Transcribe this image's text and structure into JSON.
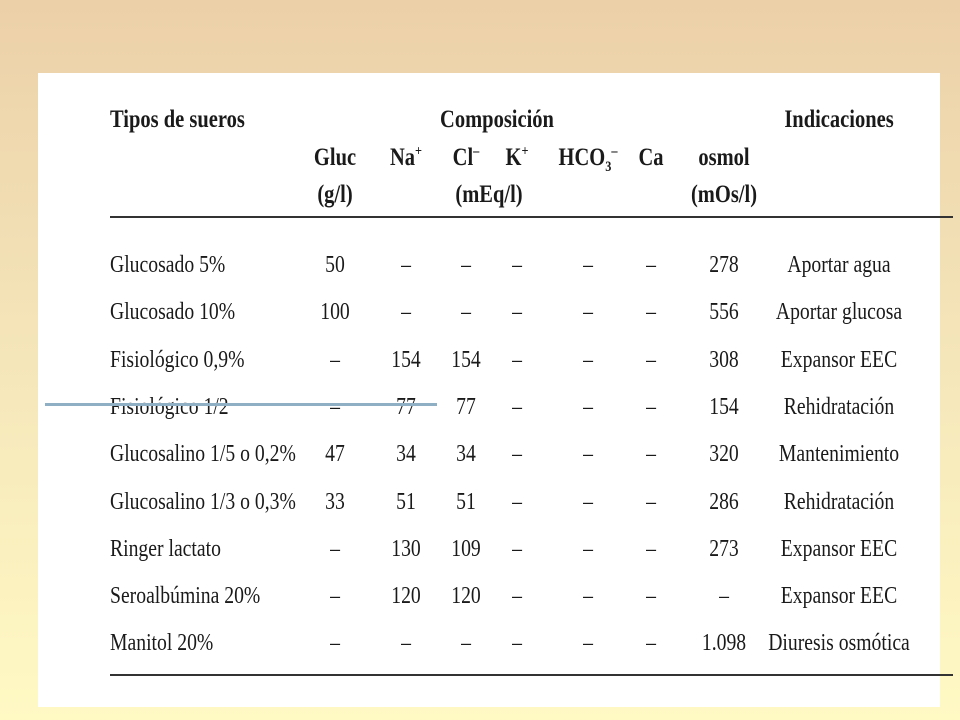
{
  "table": {
    "title_types": "Tipos de sueros",
    "title_composition": "Composición",
    "title_indications": "Indicaciones",
    "col_gluc": "Gluc",
    "col_gluc_unit": "(g/l)",
    "col_na": "Na",
    "col_na_charge": "+",
    "col_cl": "Cl",
    "col_cl_charge": "–",
    "col_k": "K",
    "col_k_charge": "+",
    "col_hco3": "HCO",
    "col_hco3_sub": "3",
    "col_hco3_charge": "–",
    "col_ca": "Ca",
    "col_osmol": "osmol",
    "col_osmol_unit": "(mOs/l)",
    "col_meq_unit": "(mEq/l)",
    "rows": [
      {
        "name": "Glucosado 5%",
        "gluc": "50",
        "na": "–",
        "cl": "–",
        "k": "–",
        "hco3": "–",
        "ca": "–",
        "osmol": "278",
        "ind": "Aportar agua"
      },
      {
        "name": "Glucosado 10%",
        "gluc": "100",
        "na": "–",
        "cl": "–",
        "k": "–",
        "hco3": "–",
        "ca": "–",
        "osmol": "556",
        "ind": "Aportar glucosa"
      },
      {
        "name": "Fisiológico 0,9%",
        "gluc": "–",
        "na": "154",
        "cl": "154",
        "k": "–",
        "hco3": "–",
        "ca": "–",
        "osmol": "308",
        "ind": "Expansor EEC"
      },
      {
        "name": "Fisiológico 1/2",
        "gluc": "–",
        "na": "77",
        "cl": "77",
        "k": "–",
        "hco3": "–",
        "ca": "–",
        "osmol": "154",
        "ind": "Rehidratación"
      },
      {
        "name": "Glucosalino 1/5 o 0,2%",
        "gluc": "47",
        "na": "34",
        "cl": "34",
        "k": "–",
        "hco3": "–",
        "ca": "–",
        "osmol": "320",
        "ind": "Mantenimiento"
      },
      {
        "name": "Glucosalino 1/3 o 0,3%",
        "gluc": "33",
        "na": "51",
        "cl": "51",
        "k": "–",
        "hco3": "–",
        "ca": "–",
        "osmol": "286",
        "ind": "Rehidratación"
      },
      {
        "name": "Ringer lactato",
        "gluc": "–",
        "na": "130",
        "cl": "109",
        "k": "–",
        "hco3": "–",
        "ca": "–",
        "osmol": "273",
        "ind": "Expansor EEC"
      },
      {
        "name": "Seroalbúmina 20%",
        "gluc": "–",
        "na": "120",
        "cl": "120",
        "k": "–",
        "hco3": "–",
        "ca": "–",
        "osmol": "–",
        "ind": "Expansor EEC"
      },
      {
        "name": "Manitol 20%",
        "gluc": "–",
        "na": "–",
        "cl": "–",
        "k": "–",
        "hco3": "–",
        "ca": "–",
        "osmol": "1.098",
        "ind": "Diuresis osmótica"
      }
    ]
  }
}
